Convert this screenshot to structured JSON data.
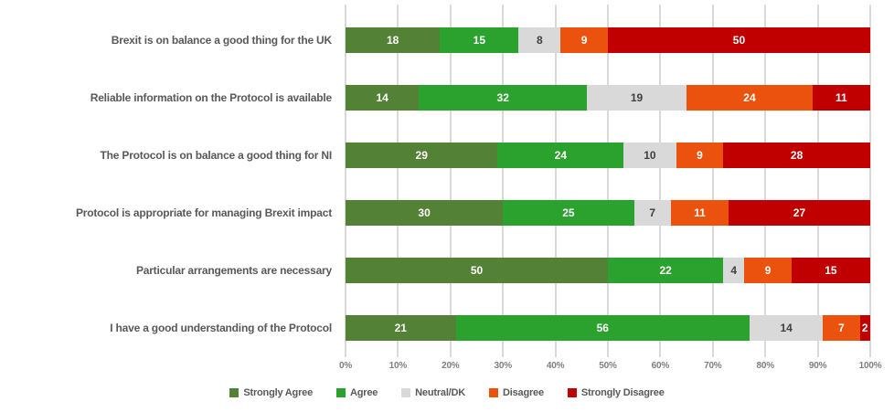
{
  "chart_data": {
    "type": "bar",
    "variant": "horizontal-stacked-100pct",
    "title": "",
    "categories": [
      "Brexit is on balance a good thing for the UK",
      "Reliable information on the Protocol is available",
      "The Protocol is on balance a good thing for NI",
      "Protocol is appropriate for managing Brexit impact",
      "Particular arrangements are necessary",
      "I have a good understanding of the Protocol"
    ],
    "series": [
      {
        "name": "Strongly Agree",
        "color": "#538135",
        "label_color": "#ffffff",
        "values": [
          18,
          14,
          29,
          30,
          50,
          21
        ]
      },
      {
        "name": "Agree",
        "color": "#2ba12e",
        "label_color": "#ffffff",
        "values": [
          15,
          32,
          24,
          25,
          22,
          56
        ]
      },
      {
        "name": "Neutral/DK",
        "color": "#d9d9d9",
        "label_color": "#3f3f3f",
        "values": [
          8,
          19,
          10,
          7,
          4,
          14
        ]
      },
      {
        "name": "Disagree",
        "color": "#ea520e",
        "label_color": "#ffffff",
        "values": [
          9,
          24,
          9,
          11,
          9,
          7
        ]
      },
      {
        "name": "Strongly Disagree",
        "color": "#c00000",
        "label_color": "#ffffff",
        "values": [
          50,
          11,
          28,
          27,
          15,
          2
        ]
      }
    ],
    "x_ticks": [
      "0%",
      "10%",
      "20%",
      "30%",
      "40%",
      "50%",
      "60%",
      "70%",
      "80%",
      "90%",
      "100%"
    ],
    "xlim": [
      0,
      100
    ],
    "grid": "vertical",
    "gridline_color": "#d9d9d9",
    "legend_position": "bottom",
    "category_label_color": "#595959",
    "tick_label_color": "#7f7f7f"
  }
}
